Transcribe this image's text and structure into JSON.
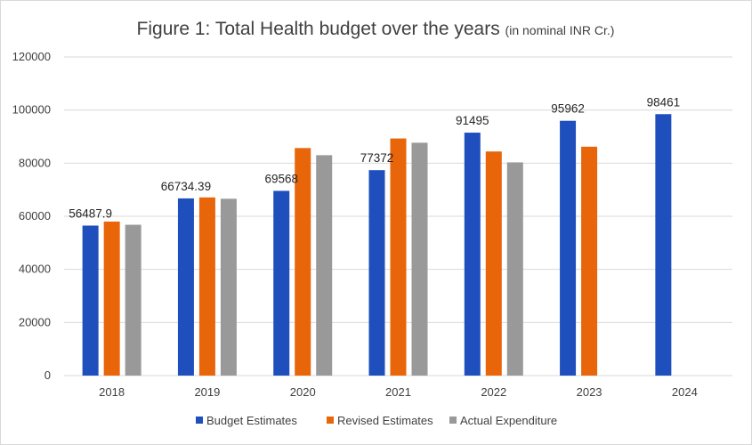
{
  "chart_data": {
    "type": "bar",
    "title": "Figure 1: Total Health budget over the years ",
    "subtitle": "(in nominal INR Cr.)",
    "xlabel": "",
    "ylabel": "",
    "categories": [
      "2018",
      "2019",
      "2020",
      "2021",
      "2022",
      "2023",
      "2024"
    ],
    "series": [
      {
        "name": "Budget Estimates",
        "color": "#1f4fbd",
        "values": [
          56487.9,
          66734.39,
          69568,
          77372,
          91495,
          95962,
          98461
        ],
        "labels": [
          "56487.9",
          "66734.39",
          "69568",
          "77372",
          "91495",
          "95962",
          "98461"
        ]
      },
      {
        "name": "Revised Estimates",
        "color": "#e8650a",
        "values": [
          58000,
          67100,
          85700,
          89300,
          84400,
          86200,
          null
        ]
      },
      {
        "name": "Actual Expenditure",
        "color": "#999999",
        "values": [
          56800,
          66600,
          83000,
          87700,
          80300,
          null,
          null
        ]
      }
    ],
    "ylim": [
      0,
      120000
    ],
    "yticks": [
      "0",
      "20000",
      "40000",
      "60000",
      "80000",
      "100000",
      "120000"
    ],
    "grid": true,
    "legend_position": "bottom"
  }
}
